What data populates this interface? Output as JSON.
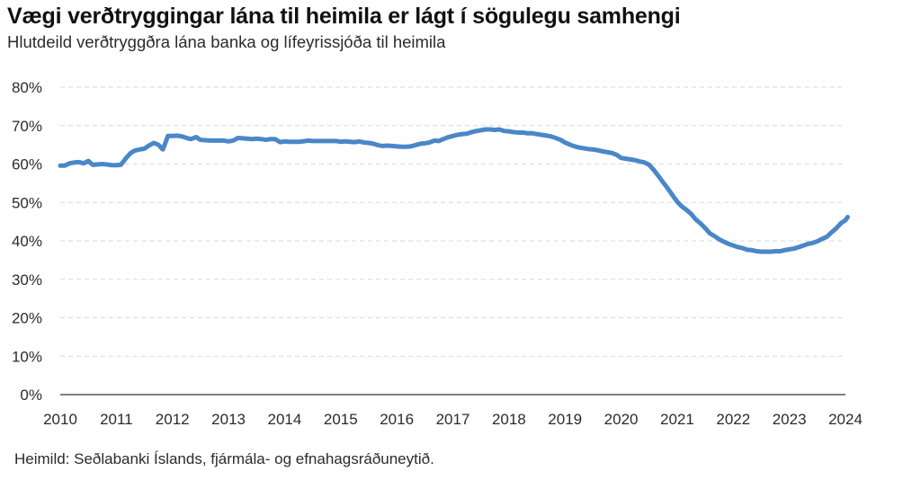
{
  "title": "Vægi verðtryggingar lána til heimila er lágt í sögulegu samhengi",
  "subtitle": "Hlutdeild verðtryggðra lána banka og lífeyrissjóða til heimila",
  "source": "Heimild: Seðlabanki Íslands, fjármála- og efnahagsráðuneytið.",
  "colors": {
    "line": "#4a86c8",
    "grid": "#d9d9d9",
    "axis": "#555555"
  },
  "chart_data": {
    "type": "line",
    "title": "Vægi verðtryggingar lána til heimila er lágt í sögulegu samhengi",
    "xlabel": "",
    "ylabel": "",
    "xlim": [
      2010,
      2024
    ],
    "ylim": [
      0,
      80
    ],
    "grid": true,
    "legend": "none",
    "y_ticks": [
      {
        "value": 0,
        "label": "0%"
      },
      {
        "value": 10,
        "label": "10%"
      },
      {
        "value": 20,
        "label": "20%"
      },
      {
        "value": 30,
        "label": "30%"
      },
      {
        "value": 40,
        "label": "40%"
      },
      {
        "value": 50,
        "label": "50%"
      },
      {
        "value": 60,
        "label": "60%"
      },
      {
        "value": 70,
        "label": "70%"
      },
      {
        "value": 80,
        "label": "80%"
      }
    ],
    "x_ticks": [
      {
        "value": 2010,
        "label": "2010"
      },
      {
        "value": 2011,
        "label": "2011"
      },
      {
        "value": 2012,
        "label": "2012"
      },
      {
        "value": 2013,
        "label": "2013"
      },
      {
        "value": 2014,
        "label": "2014"
      },
      {
        "value": 2015,
        "label": "2015"
      },
      {
        "value": 2016,
        "label": "2016"
      },
      {
        "value": 2017,
        "label": "2017"
      },
      {
        "value": 2018,
        "label": "2018"
      },
      {
        "value": 2019,
        "label": "2019"
      },
      {
        "value": 2020,
        "label": "2020"
      },
      {
        "value": 2021,
        "label": "2021"
      },
      {
        "value": 2022,
        "label": "2022"
      },
      {
        "value": 2023,
        "label": "2023"
      },
      {
        "value": 2024,
        "label": "2024"
      }
    ],
    "series": [
      {
        "values": [
          [
            2010.0,
            59.6
          ],
          [
            2010.08,
            59.6
          ],
          [
            2010.17,
            60.2
          ],
          [
            2010.25,
            60.4
          ],
          [
            2010.33,
            60.5
          ],
          [
            2010.42,
            60.2
          ],
          [
            2010.5,
            60.8
          ],
          [
            2010.58,
            59.8
          ],
          [
            2010.67,
            59.9
          ],
          [
            2010.75,
            60.0
          ],
          [
            2010.83,
            59.9
          ],
          [
            2010.92,
            59.7
          ],
          [
            2011.0,
            59.7
          ],
          [
            2011.08,
            59.8
          ],
          [
            2011.17,
            61.5
          ],
          [
            2011.25,
            62.8
          ],
          [
            2011.33,
            63.5
          ],
          [
            2011.42,
            63.8
          ],
          [
            2011.5,
            64.0
          ],
          [
            2011.58,
            64.8
          ],
          [
            2011.67,
            65.5
          ],
          [
            2011.75,
            65.0
          ],
          [
            2011.83,
            63.8
          ],
          [
            2011.92,
            67.3
          ],
          [
            2012.0,
            67.3
          ],
          [
            2012.08,
            67.4
          ],
          [
            2012.17,
            67.2
          ],
          [
            2012.25,
            66.8
          ],
          [
            2012.33,
            66.5
          ],
          [
            2012.42,
            67.0
          ],
          [
            2012.5,
            66.3
          ],
          [
            2012.58,
            66.2
          ],
          [
            2012.67,
            66.1
          ],
          [
            2012.75,
            66.1
          ],
          [
            2012.83,
            66.1
          ],
          [
            2012.92,
            66.1
          ],
          [
            2013.0,
            65.9
          ],
          [
            2013.08,
            66.1
          ],
          [
            2013.17,
            66.8
          ],
          [
            2013.25,
            66.7
          ],
          [
            2013.33,
            66.6
          ],
          [
            2013.42,
            66.5
          ],
          [
            2013.5,
            66.6
          ],
          [
            2013.58,
            66.5
          ],
          [
            2013.67,
            66.3
          ],
          [
            2013.75,
            66.5
          ],
          [
            2013.83,
            66.5
          ],
          [
            2013.92,
            65.7
          ],
          [
            2014.0,
            65.9
          ],
          [
            2014.08,
            65.8
          ],
          [
            2014.17,
            65.8
          ],
          [
            2014.25,
            65.8
          ],
          [
            2014.33,
            65.9
          ],
          [
            2014.42,
            66.1
          ],
          [
            2014.5,
            66.0
          ],
          [
            2014.58,
            66.0
          ],
          [
            2014.67,
            66.0
          ],
          [
            2014.75,
            66.0
          ],
          [
            2014.83,
            66.0
          ],
          [
            2014.92,
            66.0
          ],
          [
            2015.0,
            65.8
          ],
          [
            2015.08,
            65.9
          ],
          [
            2015.17,
            65.8
          ],
          [
            2015.25,
            65.7
          ],
          [
            2015.33,
            65.9
          ],
          [
            2015.42,
            65.6
          ],
          [
            2015.5,
            65.5
          ],
          [
            2015.58,
            65.3
          ],
          [
            2015.67,
            64.9
          ],
          [
            2015.75,
            64.7
          ],
          [
            2015.83,
            64.8
          ],
          [
            2015.92,
            64.7
          ],
          [
            2016.0,
            64.6
          ],
          [
            2016.08,
            64.5
          ],
          [
            2016.17,
            64.5
          ],
          [
            2016.25,
            64.6
          ],
          [
            2016.33,
            64.9
          ],
          [
            2016.42,
            65.3
          ],
          [
            2016.5,
            65.4
          ],
          [
            2016.58,
            65.6
          ],
          [
            2016.67,
            66.1
          ],
          [
            2016.75,
            66.0
          ],
          [
            2016.83,
            66.5
          ],
          [
            2016.92,
            67.0
          ],
          [
            2017.0,
            67.3
          ],
          [
            2017.08,
            67.6
          ],
          [
            2017.17,
            67.8
          ],
          [
            2017.25,
            67.9
          ],
          [
            2017.33,
            68.3
          ],
          [
            2017.42,
            68.6
          ],
          [
            2017.5,
            68.8
          ],
          [
            2017.58,
            69.0
          ],
          [
            2017.67,
            69.0
          ],
          [
            2017.75,
            68.9
          ],
          [
            2017.83,
            69.0
          ],
          [
            2017.92,
            68.6
          ],
          [
            2018.0,
            68.5
          ],
          [
            2018.08,
            68.3
          ],
          [
            2018.17,
            68.2
          ],
          [
            2018.25,
            68.2
          ],
          [
            2018.33,
            68.0
          ],
          [
            2018.42,
            68.0
          ],
          [
            2018.5,
            67.8
          ],
          [
            2018.58,
            67.6
          ],
          [
            2018.67,
            67.4
          ],
          [
            2018.75,
            67.2
          ],
          [
            2018.83,
            66.8
          ],
          [
            2018.92,
            66.3
          ],
          [
            2019.0,
            65.6
          ],
          [
            2019.08,
            65.1
          ],
          [
            2019.17,
            64.6
          ],
          [
            2019.25,
            64.3
          ],
          [
            2019.33,
            64.1
          ],
          [
            2019.42,
            63.9
          ],
          [
            2019.5,
            63.8
          ],
          [
            2019.58,
            63.6
          ],
          [
            2019.67,
            63.3
          ],
          [
            2019.75,
            63.1
          ],
          [
            2019.83,
            62.9
          ],
          [
            2019.92,
            62.4
          ],
          [
            2020.0,
            61.6
          ],
          [
            2020.08,
            61.4
          ],
          [
            2020.17,
            61.2
          ],
          [
            2020.25,
            61.0
          ],
          [
            2020.33,
            60.7
          ],
          [
            2020.42,
            60.4
          ],
          [
            2020.5,
            59.8
          ],
          [
            2020.58,
            58.5
          ],
          [
            2020.67,
            56.8
          ],
          [
            2020.75,
            55.2
          ],
          [
            2020.83,
            53.7
          ],
          [
            2020.92,
            51.8
          ],
          [
            2021.0,
            50.2
          ],
          [
            2021.08,
            49.0
          ],
          [
            2021.17,
            48.0
          ],
          [
            2021.25,
            47.0
          ],
          [
            2021.33,
            45.6
          ],
          [
            2021.42,
            44.5
          ],
          [
            2021.5,
            43.3
          ],
          [
            2021.58,
            42.0
          ],
          [
            2021.67,
            41.2
          ],
          [
            2021.75,
            40.4
          ],
          [
            2021.83,
            39.8
          ],
          [
            2021.92,
            39.2
          ],
          [
            2022.0,
            38.8
          ],
          [
            2022.08,
            38.4
          ],
          [
            2022.17,
            38.1
          ],
          [
            2022.25,
            37.7
          ],
          [
            2022.33,
            37.6
          ],
          [
            2022.42,
            37.3
          ],
          [
            2022.5,
            37.2
          ],
          [
            2022.58,
            37.2
          ],
          [
            2022.67,
            37.2
          ],
          [
            2022.75,
            37.3
          ],
          [
            2022.83,
            37.3
          ],
          [
            2022.92,
            37.6
          ],
          [
            2023.0,
            37.8
          ],
          [
            2023.08,
            38.0
          ],
          [
            2023.17,
            38.4
          ],
          [
            2023.25,
            38.8
          ],
          [
            2023.33,
            39.2
          ],
          [
            2023.42,
            39.5
          ],
          [
            2023.5,
            39.9
          ],
          [
            2023.58,
            40.5
          ],
          [
            2023.67,
            41.1
          ],
          [
            2023.75,
            42.2
          ],
          [
            2023.83,
            43.2
          ],
          [
            2023.92,
            44.6
          ],
          [
            2024.0,
            45.4
          ],
          [
            2024.04,
            46.2
          ]
        ]
      }
    ]
  }
}
